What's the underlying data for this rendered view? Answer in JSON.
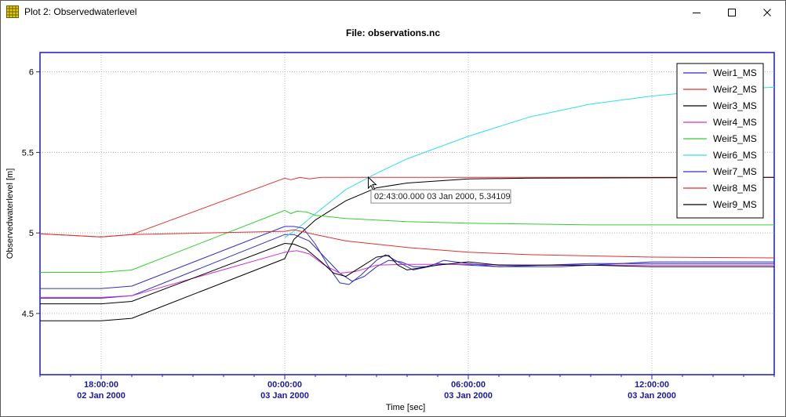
{
  "window": {
    "title": "Plot 2: Observedwaterlevel",
    "icon": "grid-app-icon",
    "controls": [
      "minimize-icon",
      "maximize-icon",
      "close-icon"
    ]
  },
  "chart_data": {
    "type": "line",
    "title": "File: observations.nc",
    "xlabel": "Time [sec]",
    "ylabel": "Observedwaterlevel [m]",
    "x_unit": "hours relative to 03 Jan 2000 00:00:00",
    "xlim": [
      -8,
      16
    ],
    "ylim": [
      4.12,
      6.12
    ],
    "grid": true,
    "legend_position": "top-right",
    "x_ticks": [
      {
        "x": -6,
        "time": "18:00:00",
        "date": "02 Jan 2000"
      },
      {
        "x": 0,
        "time": "00:00:00",
        "date": "03 Jan 2000"
      },
      {
        "x": 6,
        "time": "06:00:00",
        "date": "03 Jan 2000"
      },
      {
        "x": 12,
        "time": "12:00:00",
        "date": "03 Jan 2000"
      }
    ],
    "y_ticks": [
      {
        "value": 4.5,
        "label": "4.5"
      },
      {
        "value": 5,
        "label": "5"
      },
      {
        "value": 5.5,
        "label": "5.5"
      },
      {
        "value": 6,
        "label": "6"
      }
    ],
    "tooltip": {
      "text": "02:43:00.000 03 Jan 2000, 5.34109",
      "x": 2.717,
      "y": 5.341
    },
    "series": [
      {
        "name": "Weir1_MS",
        "color": "#2b2bc8",
        "points": [
          [
            -8,
            4.595
          ],
          [
            -6,
            4.595
          ],
          [
            -5,
            4.61
          ],
          [
            0,
            4.99
          ],
          [
            0.3,
            4.99
          ],
          [
            0.8,
            4.95
          ],
          [
            1.3,
            4.85
          ],
          [
            1.8,
            4.75
          ],
          [
            2.2,
            4.7
          ],
          [
            2.6,
            4.73
          ],
          [
            3.0,
            4.79
          ],
          [
            3.4,
            4.83
          ],
          [
            3.8,
            4.82
          ],
          [
            4.2,
            4.79
          ],
          [
            4.6,
            4.79
          ],
          [
            5.0,
            4.81
          ],
          [
            6,
            4.8
          ],
          [
            7,
            4.79
          ],
          [
            10,
            4.81
          ],
          [
            16,
            4.81
          ]
        ]
      },
      {
        "name": "Weir2_MS",
        "color": "#e03030",
        "points": [
          [
            -8,
            4.995
          ],
          [
            -6,
            4.975
          ],
          [
            -5,
            4.99
          ],
          [
            0,
            5.34
          ],
          [
            0.2,
            5.33
          ],
          [
            0.5,
            5.345
          ],
          [
            0.8,
            5.335
          ],
          [
            1.2,
            5.345
          ],
          [
            3,
            5.345
          ],
          [
            16,
            5.345
          ]
        ]
      },
      {
        "name": "Weir3_MS",
        "color": "#000000",
        "points": [
          [
            -8,
            4.455
          ],
          [
            -6,
            4.455
          ],
          [
            -5,
            4.47
          ],
          [
            0,
            4.84
          ],
          [
            0.3,
            4.96
          ],
          [
            1.0,
            5.08
          ],
          [
            2.0,
            5.2
          ],
          [
            3.0,
            5.28
          ],
          [
            4.0,
            5.31
          ],
          [
            6,
            5.335
          ],
          [
            8,
            5.34
          ],
          [
            16,
            5.345
          ]
        ]
      },
      {
        "name": "Weir4_MS",
        "color": "#d030d0",
        "points": [
          [
            -8,
            4.6
          ],
          [
            -6,
            4.6
          ],
          [
            -5,
            4.61
          ],
          [
            0,
            4.88
          ],
          [
            0.4,
            4.89
          ],
          [
            0.8,
            4.87
          ],
          [
            1.3,
            4.8
          ],
          [
            1.8,
            4.75
          ],
          [
            2.3,
            4.76
          ],
          [
            3.0,
            4.8
          ],
          [
            4,
            4.805
          ],
          [
            6,
            4.805
          ],
          [
            8,
            4.8
          ],
          [
            16,
            4.8
          ]
        ]
      },
      {
        "name": "Weir5_MS",
        "color": "#30d030",
        "points": [
          [
            -8,
            4.755
          ],
          [
            -6,
            4.755
          ],
          [
            -5,
            4.77
          ],
          [
            0,
            5.14
          ],
          [
            0.2,
            5.12
          ],
          [
            0.4,
            5.135
          ],
          [
            0.7,
            5.13
          ],
          [
            1.0,
            5.11
          ],
          [
            2,
            5.09
          ],
          [
            4,
            5.07
          ],
          [
            6,
            5.06
          ],
          [
            10,
            5.05
          ],
          [
            16,
            5.05
          ]
        ]
      },
      {
        "name": "Weir6_MS",
        "color": "#30e0e0",
        "points": [
          [
            0,
            4.97
          ],
          [
            0.5,
            5.04
          ],
          [
            1.0,
            5.12
          ],
          [
            2.0,
            5.27
          ],
          [
            3.0,
            5.37
          ],
          [
            4.0,
            5.46
          ],
          [
            6,
            5.6
          ],
          [
            8,
            5.72
          ],
          [
            10,
            5.8
          ],
          [
            12,
            5.85
          ],
          [
            14,
            5.885
          ],
          [
            16,
            5.905
          ]
        ]
      },
      {
        "name": "Weir7_MS",
        "color": "#3030d0",
        "points": [
          [
            -8,
            4.655
          ],
          [
            -6,
            4.655
          ],
          [
            -5,
            4.67
          ],
          [
            0,
            5.04
          ],
          [
            0.3,
            5.04
          ],
          [
            0.6,
            5.03
          ],
          [
            1.0,
            4.93
          ],
          [
            1.5,
            4.77
          ],
          [
            1.8,
            4.69
          ],
          [
            2.1,
            4.68
          ],
          [
            2.5,
            4.74
          ],
          [
            3.0,
            4.83
          ],
          [
            3.3,
            4.865
          ],
          [
            3.7,
            4.82
          ],
          [
            4.2,
            4.77
          ],
          [
            4.7,
            4.79
          ],
          [
            5.2,
            4.83
          ],
          [
            6,
            4.81
          ],
          [
            7,
            4.79
          ],
          [
            9,
            4.79
          ],
          [
            12,
            4.82
          ],
          [
            16,
            4.82
          ]
        ]
      },
      {
        "name": "Weir8_MS",
        "color": "#e03030",
        "points": [
          [
            -8,
            4.995
          ],
          [
            -6,
            4.975
          ],
          [
            -5,
            4.99
          ],
          [
            0,
            5.01
          ],
          [
            0.3,
            5.02
          ],
          [
            1,
            4.99
          ],
          [
            2,
            4.95
          ],
          [
            4,
            4.91
          ],
          [
            6,
            4.88
          ],
          [
            8,
            4.865
          ],
          [
            12,
            4.85
          ],
          [
            16,
            4.845
          ]
        ]
      },
      {
        "name": "Weir9_MS",
        "color": "#000000",
        "points": [
          [
            -8,
            4.56
          ],
          [
            -6,
            4.56
          ],
          [
            -5,
            4.575
          ],
          [
            0,
            4.935
          ],
          [
            0.3,
            4.93
          ],
          [
            0.7,
            4.9
          ],
          [
            1.2,
            4.82
          ],
          [
            1.6,
            4.75
          ],
          [
            2.0,
            4.73
          ],
          [
            2.5,
            4.79
          ],
          [
            3.0,
            4.85
          ],
          [
            3.4,
            4.86
          ],
          [
            3.7,
            4.8
          ],
          [
            4.0,
            4.77
          ],
          [
            5.0,
            4.8
          ],
          [
            6,
            4.82
          ],
          [
            7,
            4.8
          ],
          [
            10,
            4.8
          ],
          [
            12,
            4.79
          ],
          [
            16,
            4.79
          ]
        ]
      }
    ]
  }
}
